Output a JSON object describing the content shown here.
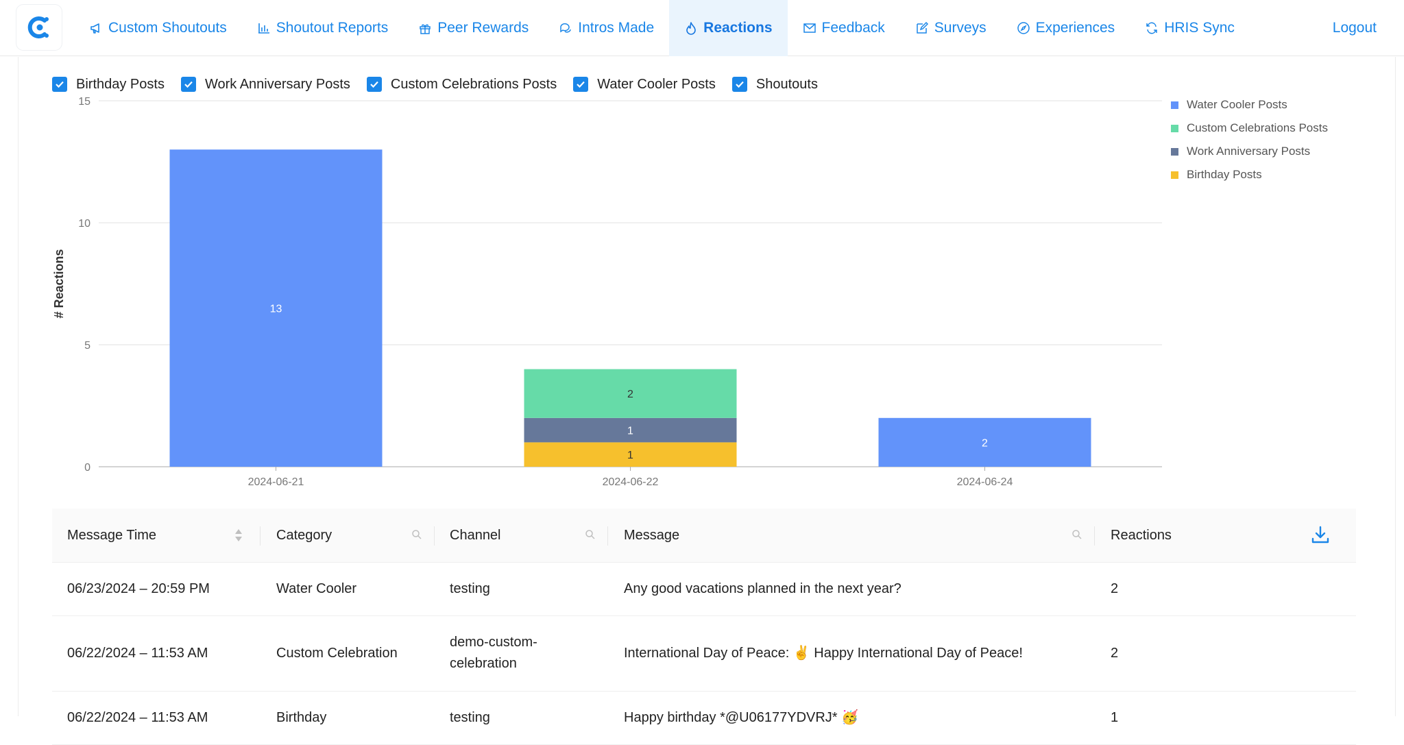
{
  "nav": {
    "items": [
      {
        "label": "Custom Shoutouts",
        "icon": "megaphone-icon",
        "active": false
      },
      {
        "label": "Shoutout Reports",
        "icon": "bar-chart-icon",
        "active": false
      },
      {
        "label": "Peer Rewards",
        "icon": "gift-icon",
        "active": false
      },
      {
        "label": "Intros Made",
        "icon": "chat-bubbles-icon",
        "active": true
      },
      {
        "label": "Reactions",
        "icon": "flame-icon",
        "active": true
      },
      {
        "label": "Feedback",
        "icon": "mail-icon",
        "active": false
      },
      {
        "label": "Surveys",
        "icon": "edit-icon",
        "active": false
      },
      {
        "label": "Experiences",
        "icon": "compass-icon",
        "active": false
      },
      {
        "label": "HRIS Sync",
        "icon": "sync-icon",
        "active": false
      }
    ],
    "logout": "Logout",
    "accent": "#1a86e8"
  },
  "filters": [
    {
      "label": "Birthday Posts",
      "checked": true
    },
    {
      "label": "Work Anniversary Posts",
      "checked": true
    },
    {
      "label": "Custom Celebrations Posts",
      "checked": true
    },
    {
      "label": "Water Cooler Posts",
      "checked": true
    },
    {
      "label": "Shoutouts",
      "checked": true
    }
  ],
  "chart_data": {
    "type": "bar",
    "stacked": true,
    "ylabel": "# Reactions",
    "xlabel": "",
    "ylim": [
      0,
      15
    ],
    "yticks": [
      0,
      5,
      10,
      15
    ],
    "grid": true,
    "legend_position": "top-right",
    "categories": [
      "2024-06-21",
      "2024-06-22",
      "2024-06-24"
    ],
    "series": [
      {
        "name": "Birthday Posts",
        "color": "#f6c02d",
        "values": [
          0,
          1,
          0
        ]
      },
      {
        "name": "Work Anniversary Posts",
        "color": "#66789a",
        "values": [
          0,
          1,
          0
        ]
      },
      {
        "name": "Custom Celebrations Posts",
        "color": "#66dba8",
        "values": [
          0,
          2,
          0
        ]
      },
      {
        "name": "Water Cooler Posts",
        "color": "#6293fa",
        "values": [
          13,
          0,
          2
        ]
      }
    ],
    "legend_order": [
      "Water Cooler Posts",
      "Custom Celebrations Posts",
      "Work Anniversary Posts",
      "Birthday Posts"
    ]
  },
  "table": {
    "columns": [
      {
        "label": "Message Time",
        "icon": "sort-icon"
      },
      {
        "label": "Category",
        "icon": "search-icon"
      },
      {
        "label": "Channel",
        "icon": "search-icon"
      },
      {
        "label": "Message",
        "icon": "search-icon"
      },
      {
        "label": "Reactions",
        "icon": "download-icon"
      }
    ],
    "rows": [
      {
        "time": "06/23/2024 – 20:59 PM",
        "category": "Water Cooler",
        "channel": "testing",
        "message": "Any good vacations planned in the next year?",
        "reactions": "2"
      },
      {
        "time": "06/22/2024 – 11:53 AM",
        "category": "Custom Celebration",
        "channel": "demo-custom-celebration",
        "message": "International Day of Peace: ✌️ Happy International Day of Peace!",
        "reactions": "2"
      },
      {
        "time": "06/22/2024 – 11:53 AM",
        "category": "Birthday",
        "channel": "testing",
        "message": "Happy birthday *@U06177YDVRJ* 🥳",
        "reactions": "1"
      }
    ]
  }
}
